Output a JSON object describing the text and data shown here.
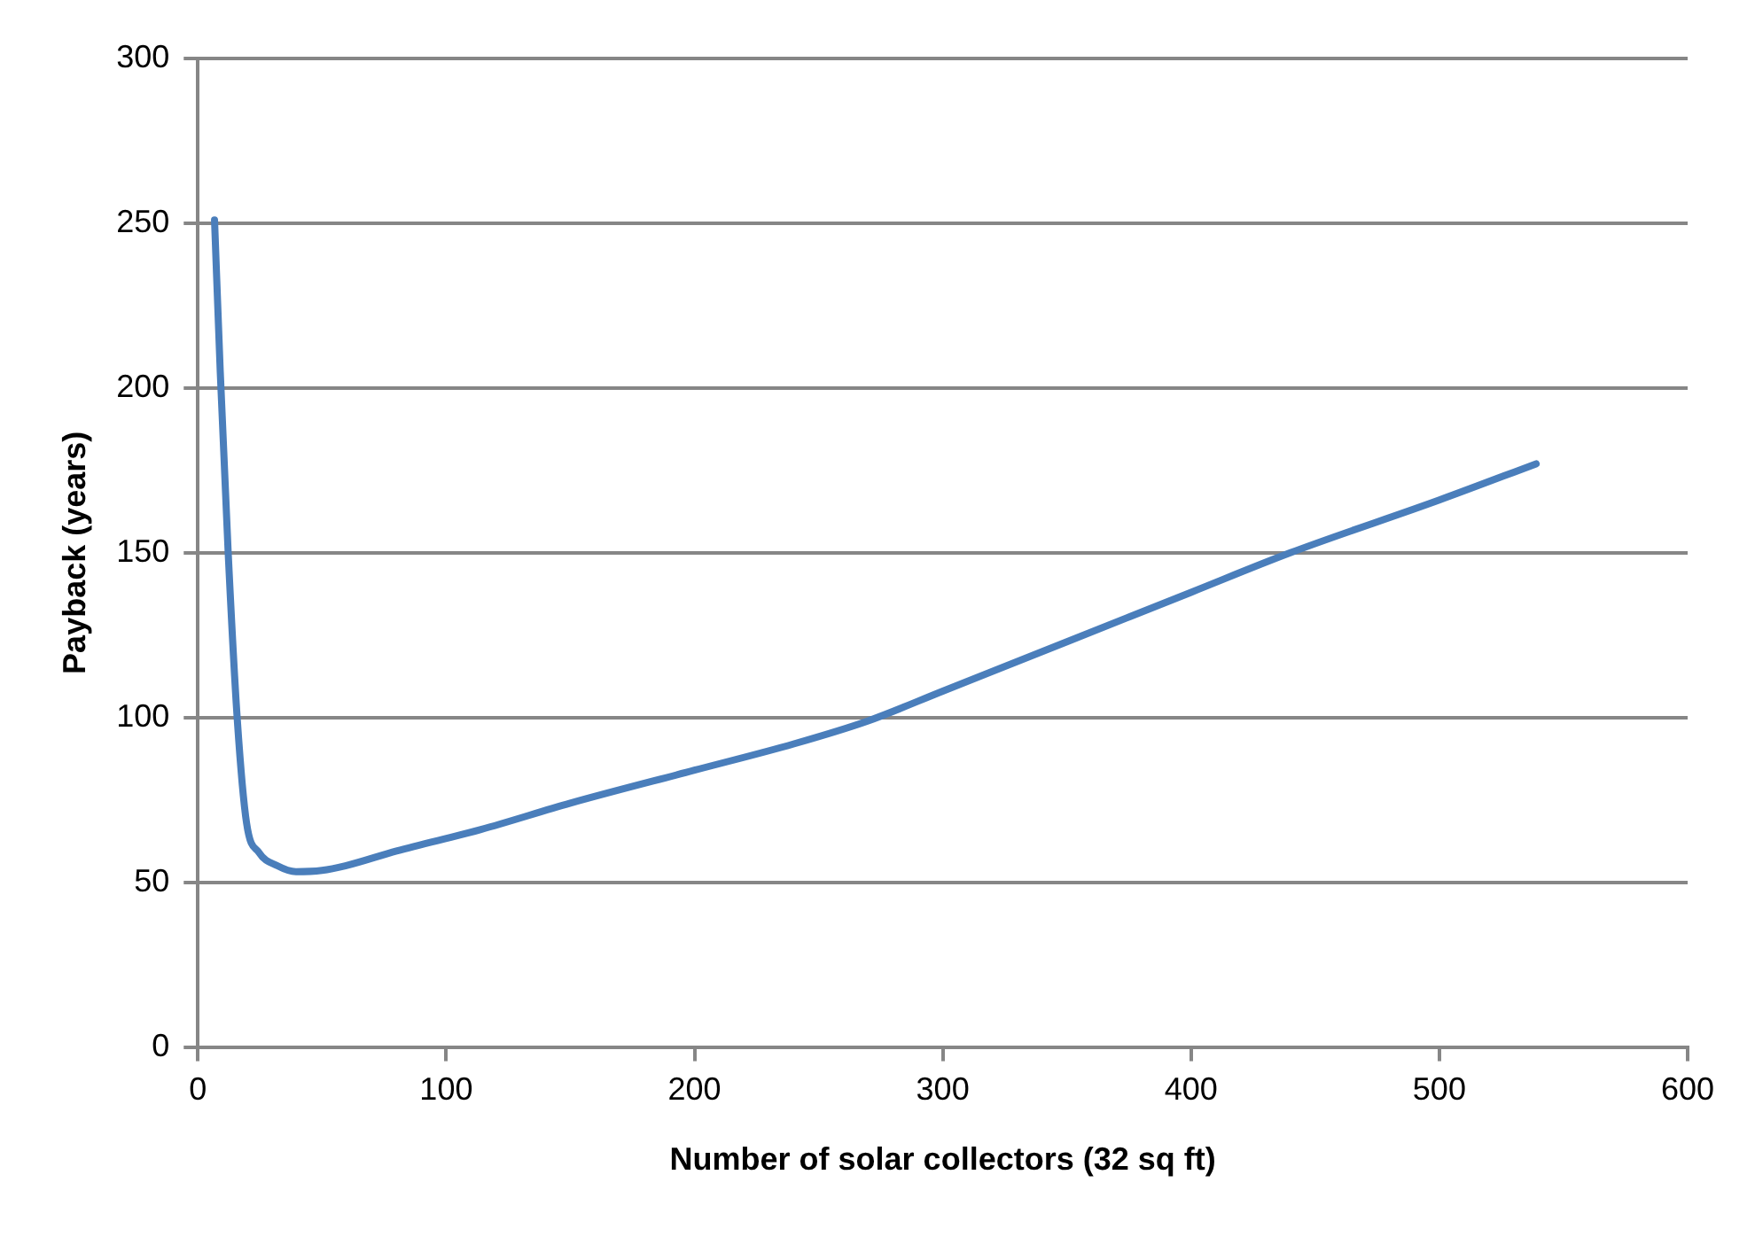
{
  "chart_data": {
    "type": "line",
    "xlabel": "Number of solar collectors (32 sq ft)",
    "ylabel": "Payback (years)",
    "x": [
      6.7,
      9,
      12.2,
      15.9,
      19.6,
      24.6,
      32,
      39.5,
      50,
      59.4,
      80,
      114,
      150,
      200,
      240,
      270,
      300,
      350,
      400,
      440,
      500,
      539
    ],
    "series": [
      {
        "color": "#4a7ebb",
        "values": [
          251,
          205,
          150,
          99,
          68,
          59,
          55,
          53.2,
          53.6,
          55,
          59.5,
          66,
          74,
          84,
          92,
          99,
          108,
          123,
          138,
          150,
          166,
          177
        ]
      }
    ],
    "xlim": [
      0,
      600
    ],
    "xticks": [
      0,
      100,
      200,
      300,
      400,
      500,
      600
    ],
    "ylim": [
      0,
      300
    ],
    "yticks": [
      0,
      50,
      100,
      150,
      200,
      250,
      300
    ],
    "grid": "y",
    "legend": false,
    "marker": "none",
    "line_style": "solid"
  }
}
